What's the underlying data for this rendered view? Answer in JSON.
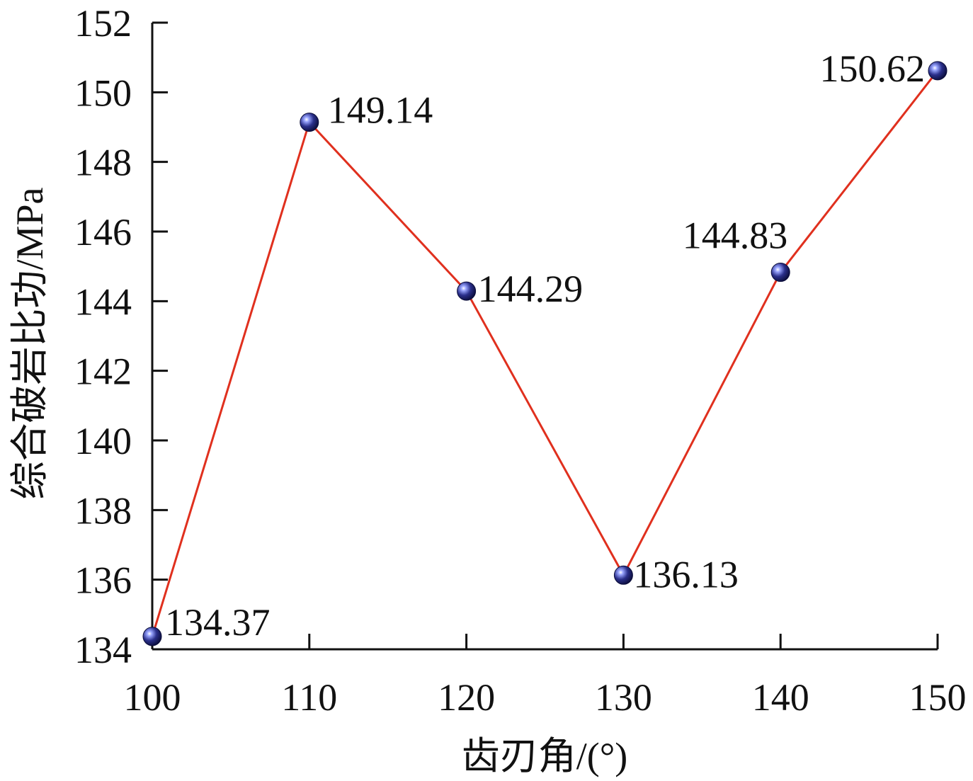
{
  "chart_data": {
    "type": "line",
    "title": "",
    "xlabel": "齿刃角/(°)",
    "ylabel": "综合破岩比功/MPa",
    "x": [
      100,
      110,
      120,
      130,
      140,
      150
    ],
    "xlim": [
      100,
      150
    ],
    "ylim": [
      134,
      152
    ],
    "x_ticks": [
      "100",
      "110",
      "120",
      "130",
      "140",
      "150"
    ],
    "y_ticks": [
      "134",
      "136",
      "138",
      "140",
      "142",
      "144",
      "146",
      "148",
      "150",
      "152"
    ],
    "series": [
      {
        "values": [
          134.37,
          149.14,
          144.29,
          136.13,
          144.83,
          150.62
        ],
        "labels": [
          "134.37",
          "149.14",
          "144.29",
          "136.13",
          "144.83",
          "150.62"
        ],
        "line_color": "#e0301e",
        "marker_color": "#2a2f8a"
      }
    ],
    "grid": false,
    "legend": "none"
  }
}
